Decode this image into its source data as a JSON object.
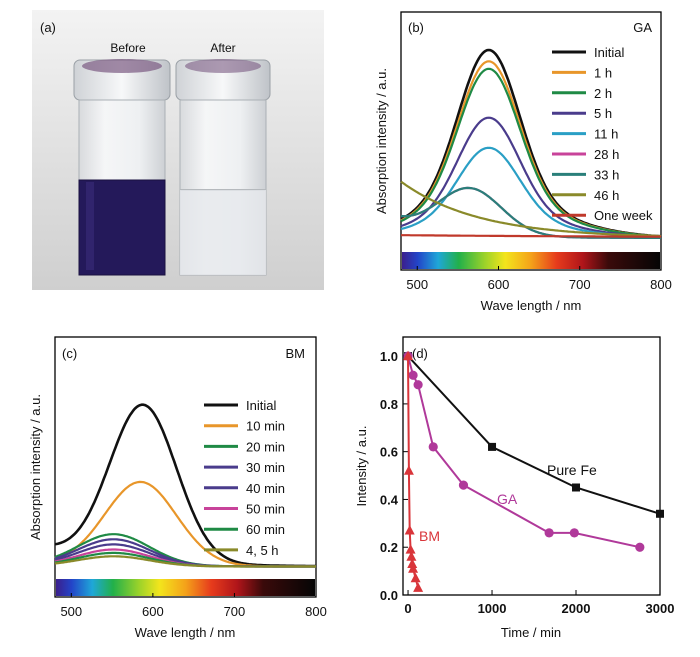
{
  "colors": {
    "initial": "#111111",
    "c1": "#e8962a",
    "c2": "#1f8a45",
    "c3": "#4a3c8c",
    "c4": "#2a9fc5",
    "c5": "#c8439a",
    "c6": "#2a7f7a",
    "c7": "#8a8a2a",
    "c8": "#c0392b",
    "pureFe": "#111111",
    "ga": "#b0399a",
    "bm": "#d9353a"
  },
  "panel_a": {
    "label": "(a)",
    "before": "Before",
    "after": "After"
  },
  "chart_data": [
    {
      "id": "b",
      "type": "line",
      "panel_label": "(b)",
      "title": "GA",
      "xlabel": "Wave length / nm",
      "ylabel": "Absorption intensity / a.u.",
      "xlim": [
        480,
        800
      ],
      "xticks": [
        "500",
        "600",
        "700",
        "800"
      ],
      "legend_position": "right",
      "grid": false,
      "series": [
        {
          "name": "Initial",
          "peak": 1.0
        },
        {
          "name": "1 h",
          "peak": 0.94
        },
        {
          "name": "2 h",
          "peak": 0.9
        },
        {
          "name": "5 h",
          "peak": 0.64
        },
        {
          "name": "11 h",
          "peak": 0.48
        },
        {
          "name": "28 h",
          "peak": 0.27
        },
        {
          "name": "33 h",
          "peak": 0.27
        },
        {
          "name": "46 h",
          "peak": 0.3
        },
        {
          "name": "One week",
          "peak": 0.02
        }
      ]
    },
    {
      "id": "c",
      "type": "line",
      "panel_label": "(c)",
      "title": "BM",
      "xlabel": "Wave length / nm",
      "ylabel": "Absorption intensity / a.u.",
      "xlim": [
        480,
        800
      ],
      "xticks": [
        "500",
        "600",
        "700",
        "800"
      ],
      "legend_position": "right",
      "grid": false,
      "series": [
        {
          "name": "Initial",
          "peak": 1.0
        },
        {
          "name": "10 min",
          "peak": 0.5
        },
        {
          "name": "20 min",
          "peak": 0.19
        },
        {
          "name": "30 min",
          "peak": 0.16
        },
        {
          "name": "40 min",
          "peak": 0.13
        },
        {
          "name": "50 min",
          "peak": 0.1
        },
        {
          "name": "60 min",
          "peak": 0.08
        },
        {
          "name": "4, 5 h",
          "peak": 0.06
        }
      ]
    },
    {
      "id": "d",
      "type": "line",
      "panel_label": "(d)",
      "xlabel": "Time / min",
      "ylabel": "Intensity / a.u.",
      "xlim": [
        -60,
        3000
      ],
      "ylim": [
        0,
        1.08
      ],
      "xticks": [
        0,
        1000,
        2000,
        3000
      ],
      "yticks": [
        0.0,
        0.2,
        0.4,
        0.6,
        0.8,
        1.0
      ],
      "grid": false,
      "series": [
        {
          "name": "Pure Fe",
          "marker": "square",
          "x": [
            0,
            1000,
            2000,
            3000
          ],
          "y": [
            1.0,
            0.62,
            0.45,
            0.34
          ]
        },
        {
          "name": "GA",
          "marker": "circle",
          "x": [
            0,
            60,
            120,
            300,
            660,
            1680,
            1980,
            2760
          ],
          "y": [
            1.0,
            0.92,
            0.88,
            0.62,
            0.46,
            0.26,
            0.26,
            0.2
          ]
        },
        {
          "name": "BM",
          "marker": "triangle",
          "x": [
            0,
            10,
            20,
            30,
            40,
            50,
            60,
            90,
            120
          ],
          "y": [
            1.0,
            0.52,
            0.27,
            0.19,
            0.16,
            0.13,
            0.11,
            0.07,
            0.03
          ]
        }
      ]
    }
  ]
}
